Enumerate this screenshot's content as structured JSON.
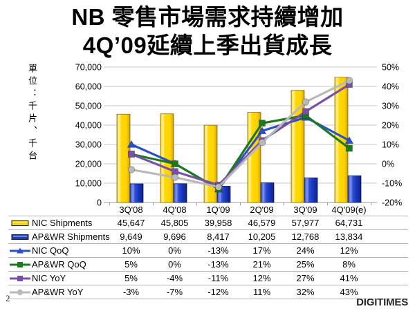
{
  "title": {
    "line1": "NB 零售市場需求持續增加",
    "line2": "4Q’09延續上季出貨成長"
  },
  "page": {
    "number": "2"
  },
  "footer": {
    "logo_text": "DIGITIMES"
  },
  "chart_data": {
    "type": "bar+line combo",
    "title": "NB 零售市場需求持續增加 4Q’09延續上季出貨成長",
    "ylabel": "單位：千片、千台",
    "categories": [
      "3Q'08",
      "4Q'08",
      "1Q'09",
      "2Q'09",
      "3Q'09",
      "4Q'09(e)"
    ],
    "left_axis": {
      "min": 0,
      "max": 70000,
      "step": 10000,
      "tick_labels": [
        "0",
        "10,000",
        "20,000",
        "30,000",
        "40,000",
        "50,000",
        "60,000",
        "70,000"
      ]
    },
    "right_axis": {
      "min": -20,
      "max": 50,
      "step": 10,
      "tick_labels": [
        "-20%",
        "-10%",
        "0%",
        "10%",
        "20%",
        "30%",
        "40%",
        "50%"
      ]
    },
    "grid": true,
    "legend_position": "table-left",
    "series": [
      {
        "name": "NIC Shipments",
        "type": "bar",
        "axis": "left",
        "color": "#FFD400",
        "marker": "bar",
        "values": [
          45647,
          45805,
          39958,
          46579,
          57977,
          64731
        ],
        "display": [
          "45,647",
          "45,805",
          "39,958",
          "46,579",
          "57,977",
          "64,731"
        ]
      },
      {
        "name": "AP&WR Shipments",
        "type": "bar",
        "axis": "left",
        "color": "#1A3BC4",
        "marker": "bar",
        "values": [
          9649,
          9696,
          8417,
          10205,
          12768,
          13834
        ],
        "display": [
          "9,649",
          "9,696",
          "8,417",
          "10,205",
          "12,768",
          "13,834"
        ]
      },
      {
        "name": "NIC QoQ",
        "type": "line",
        "axis": "right",
        "color": "#2B51C8",
        "marker": "triangle",
        "values": [
          10,
          0,
          -13,
          17,
          24,
          12
        ],
        "display": [
          "10%",
          "0%",
          "-13%",
          "17%",
          "24%",
          "12%"
        ]
      },
      {
        "name": "AP&WR QoQ",
        "type": "line",
        "axis": "right",
        "color": "#1B7B1B",
        "marker": "square",
        "values": [
          5,
          0,
          -13,
          21,
          25,
          8
        ],
        "display": [
          "5%",
          "0%",
          "-13%",
          "21%",
          "25%",
          "8%"
        ]
      },
      {
        "name": "NIC YoY",
        "type": "line",
        "axis": "right",
        "color": "#7A4FA8",
        "marker": "square",
        "values": [
          5,
          -4,
          -11,
          12,
          27,
          41
        ],
        "display": [
          "5%",
          "-4%",
          "-11%",
          "12%",
          "27%",
          "41%"
        ]
      },
      {
        "name": "AP&WR YoY",
        "type": "line",
        "axis": "right",
        "color": "#B9B9B9",
        "marker": "circle",
        "values": [
          -3,
          -7,
          -12,
          11,
          32,
          43
        ],
        "display": [
          "-3%",
          "-7%",
          "-12%",
          "11%",
          "32%",
          "43%"
        ]
      }
    ]
  }
}
